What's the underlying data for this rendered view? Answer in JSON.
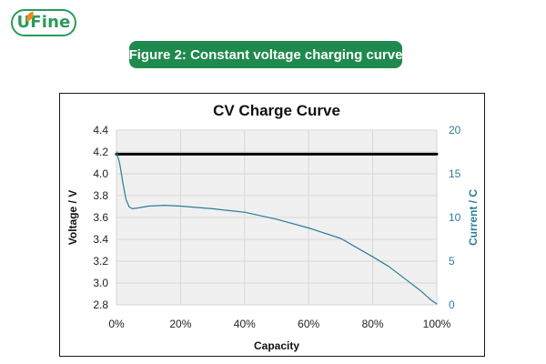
{
  "logo": {
    "text": "UFine",
    "brand_color": "#2b9a5b",
    "accent_color": "#f08a1c"
  },
  "banner": {
    "text": "Figure 2: Constant voltage charging curve",
    "color": "#1f8a4d"
  },
  "chart_data": {
    "type": "line",
    "title": "CV Charge Curve",
    "xlabel": "Capacity",
    "ylabel": "Voltage / V",
    "y2label": "Current / C",
    "xlim": [
      0,
      100
    ],
    "ylim": [
      2.8,
      4.4
    ],
    "y2lim": [
      0,
      20
    ],
    "x_ticks": [
      "0%",
      "20%",
      "40%",
      "60%",
      "80%",
      "100%"
    ],
    "y_ticks": [
      "2.8",
      "3.0",
      "3.2",
      "3.4",
      "3.6",
      "3.8",
      "4.0",
      "4.2",
      "4.4"
    ],
    "y2_ticks": [
      "0",
      "5",
      "10",
      "15",
      "20"
    ],
    "grid": true,
    "legend": "none",
    "series": [
      {
        "axis": "left",
        "color": "#000000",
        "x": [
          0,
          100
        ],
        "y": [
          4.18,
          4.18
        ]
      },
      {
        "axis": "right",
        "color": "#2a7d9b",
        "x": [
          0,
          1,
          2,
          3,
          4,
          5,
          7,
          10,
          15,
          20,
          30,
          40,
          50,
          60,
          70,
          80,
          85,
          90,
          95,
          98,
          100
        ],
        "y": [
          17.5,
          16.2,
          14.0,
          12.0,
          11.2,
          11.0,
          11.1,
          11.3,
          11.4,
          11.3,
          11.0,
          10.6,
          9.8,
          8.8,
          7.6,
          5.5,
          4.4,
          3.0,
          1.6,
          0.6,
          0.1
        ]
      }
    ]
  }
}
